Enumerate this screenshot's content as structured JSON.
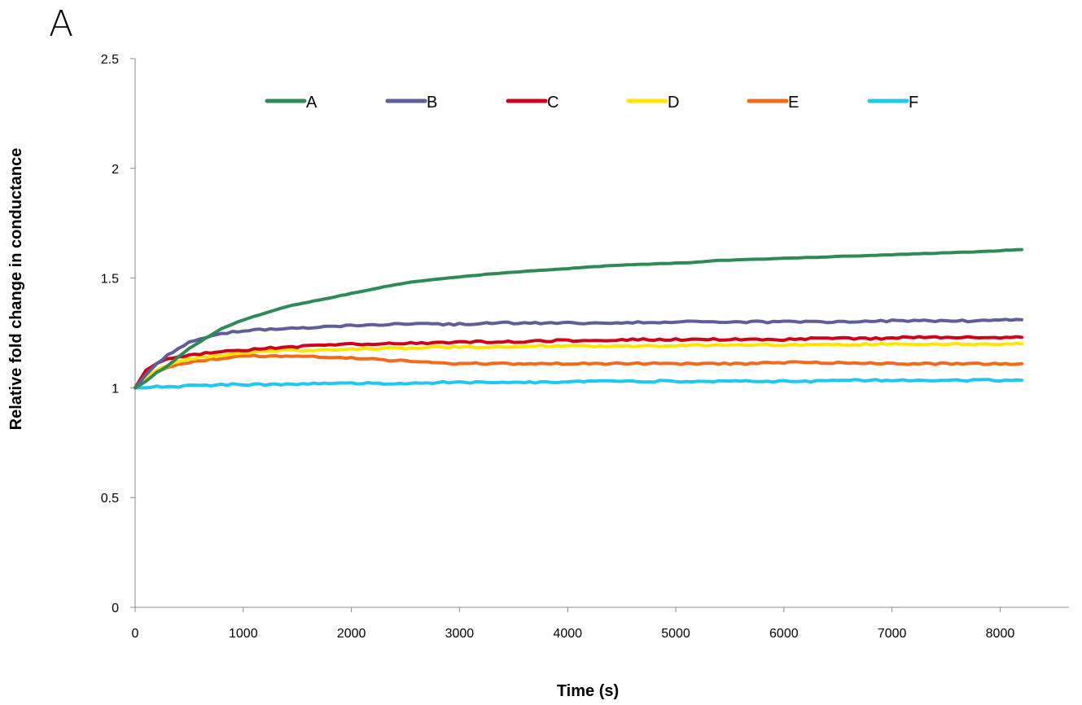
{
  "panel_label": "A",
  "chart_data": {
    "type": "line",
    "title": "",
    "xlabel": "Time (s)",
    "ylabel": "Relative fold change in conductance",
    "xlim": [
      0,
      8200
    ],
    "ylim": [
      0,
      2.5
    ],
    "x_ticks": [
      0,
      1000,
      2000,
      3000,
      4000,
      5000,
      6000,
      7000,
      8000
    ],
    "y_ticks": [
      0,
      0.5,
      1,
      1.5,
      2,
      2.5
    ],
    "x_tick_labels": [
      "0",
      "1000",
      "2000",
      "3000",
      "4000",
      "5000",
      "6000",
      "7000",
      "8000"
    ],
    "y_tick_labels": [
      "0",
      "0.5",
      "1",
      "1.5",
      "2",
      "2.5"
    ],
    "grid": false,
    "legend_position": "top",
    "x": [
      0,
      100,
      200,
      300,
      400,
      500,
      600,
      700,
      800,
      900,
      1000,
      1200,
      1400,
      1600,
      1800,
      2000,
      2200,
      2400,
      2600,
      2800,
      3000,
      3300,
      3600,
      3900,
      4200,
      4500,
      4800,
      5100,
      5400,
      5700,
      6000,
      6300,
      6600,
      6900,
      7200,
      7500,
      7800,
      8200
    ],
    "series": [
      {
        "name": "A",
        "color": "#2e8b57",
        "values": [
          1.0,
          1.03,
          1.07,
          1.1,
          1.14,
          1.18,
          1.21,
          1.24,
          1.27,
          1.29,
          1.31,
          1.34,
          1.37,
          1.39,
          1.41,
          1.43,
          1.45,
          1.47,
          1.485,
          1.495,
          1.505,
          1.52,
          1.53,
          1.54,
          1.55,
          1.56,
          1.565,
          1.57,
          1.58,
          1.585,
          1.59,
          1.595,
          1.6,
          1.605,
          1.61,
          1.615,
          1.62,
          1.63
        ]
      },
      {
        "name": "B",
        "color": "#5f5e98",
        "values": [
          1.0,
          1.06,
          1.11,
          1.15,
          1.18,
          1.21,
          1.22,
          1.235,
          1.245,
          1.255,
          1.26,
          1.265,
          1.27,
          1.275,
          1.28,
          1.285,
          1.285,
          1.29,
          1.29,
          1.29,
          1.29,
          1.295,
          1.295,
          1.295,
          1.295,
          1.295,
          1.3,
          1.3,
          1.3,
          1.3,
          1.3,
          1.3,
          1.3,
          1.305,
          1.305,
          1.305,
          1.305,
          1.31
        ]
      },
      {
        "name": "C",
        "color": "#d0021b",
        "values": [
          1.0,
          1.08,
          1.11,
          1.13,
          1.14,
          1.15,
          1.155,
          1.16,
          1.165,
          1.17,
          1.17,
          1.18,
          1.185,
          1.19,
          1.195,
          1.2,
          1.2,
          1.2,
          1.205,
          1.205,
          1.21,
          1.21,
          1.21,
          1.215,
          1.215,
          1.22,
          1.22,
          1.22,
          1.22,
          1.22,
          1.22,
          1.225,
          1.225,
          1.225,
          1.23,
          1.23,
          1.23,
          1.23
        ]
      },
      {
        "name": "D",
        "color": "#ffe600",
        "values": [
          1.0,
          1.05,
          1.08,
          1.1,
          1.12,
          1.13,
          1.14,
          1.145,
          1.15,
          1.155,
          1.16,
          1.165,
          1.17,
          1.17,
          1.175,
          1.175,
          1.18,
          1.18,
          1.18,
          1.185,
          1.185,
          1.185,
          1.19,
          1.19,
          1.19,
          1.19,
          1.19,
          1.195,
          1.195,
          1.195,
          1.195,
          1.195,
          1.195,
          1.2,
          1.2,
          1.2,
          1.2,
          1.2
        ]
      },
      {
        "name": "E",
        "color": "#f26b1d",
        "values": [
          1.0,
          1.04,
          1.07,
          1.09,
          1.105,
          1.115,
          1.125,
          1.13,
          1.135,
          1.14,
          1.145,
          1.145,
          1.145,
          1.145,
          1.14,
          1.135,
          1.13,
          1.125,
          1.12,
          1.115,
          1.11,
          1.11,
          1.11,
          1.11,
          1.11,
          1.11,
          1.11,
          1.11,
          1.11,
          1.11,
          1.115,
          1.115,
          1.115,
          1.11,
          1.11,
          1.11,
          1.11,
          1.11
        ]
      },
      {
        "name": "F",
        "color": "#1ec8f0",
        "values": [
          1.0,
          1.0,
          1.005,
          1.005,
          1.005,
          1.01,
          1.01,
          1.01,
          1.015,
          1.015,
          1.015,
          1.015,
          1.015,
          1.02,
          1.02,
          1.02,
          1.02,
          1.02,
          1.02,
          1.025,
          1.025,
          1.025,
          1.025,
          1.025,
          1.03,
          1.03,
          1.03,
          1.03,
          1.03,
          1.03,
          1.03,
          1.03,
          1.035,
          1.035,
          1.035,
          1.035,
          1.035,
          1.035
        ]
      }
    ]
  }
}
